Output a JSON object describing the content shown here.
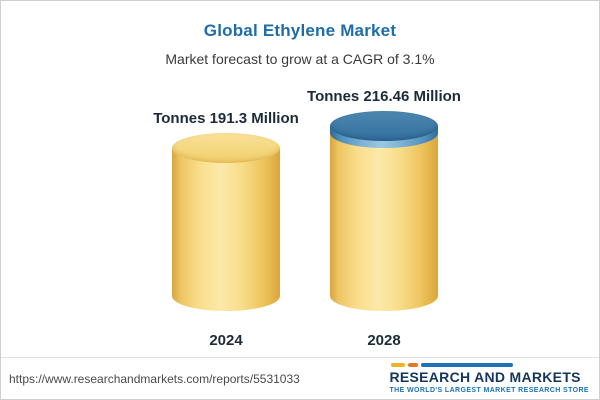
{
  "header": {
    "title": "Global Ethylene Market",
    "subtitle": "Market forecast to grow at a CAGR of 3.1%"
  },
  "chart_data": {
    "type": "bar",
    "variant": "3d-cylinder",
    "title": "Global Ethylene Market",
    "subtitle": "Market forecast to grow at a CAGR of 3.1%",
    "categories": [
      "2024",
      "2028"
    ],
    "values": [
      191.3,
      216.46
    ],
    "unit": "Million Tonnes",
    "bar_labels": [
      "Tonnes 191.3 Million",
      "Tonnes 216.46 Million"
    ],
    "cagr_percent": 3.1,
    "legend": "none",
    "grid": "off",
    "colors": {
      "bar_body": "#f6d67c",
      "growth_cap": "#5e9cc6",
      "title_text": "#1f6cab",
      "label_text": "#1b2b3a"
    },
    "notes": "2028 cylinder has a blue top segment representing growth above the 2024 level"
  },
  "footer": {
    "url": "https://www.researchandmarkets.com/reports/5531033",
    "logo_title": "RESEARCH AND MARKETS",
    "logo_tagline": "THE WORLD'S LARGEST MARKET RESEARCH STORE"
  }
}
